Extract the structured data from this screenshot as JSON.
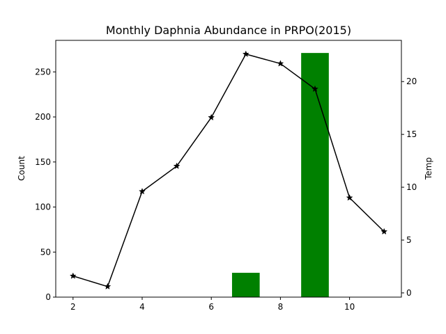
{
  "chart_data": {
    "type": "bar+line",
    "title": "Monthly Daphnia Abundance in PRPO(2015)",
    "xlabel": "",
    "ylabel": "Count",
    "y2label": "Temp",
    "xlim": [
      1.5,
      11.5
    ],
    "ylim": [
      0,
      285
    ],
    "y2lim": [
      -0.4,
      23.9
    ],
    "xticks": [
      2,
      4,
      6,
      8,
      10
    ],
    "yticks": [
      0,
      50,
      100,
      150,
      200,
      250
    ],
    "y2ticks": [
      0,
      5,
      10,
      15,
      20
    ],
    "bar_width": 0.8,
    "bar_color": "#008000",
    "line_color": "#000000",
    "marker": "star",
    "series": [
      {
        "type": "bar",
        "axis": "left",
        "x": [
          2,
          3,
          4,
          5,
          6,
          7,
          8,
          9,
          10,
          11
        ],
        "values": [
          0,
          0,
          0,
          0,
          0,
          27,
          0,
          271,
          0,
          0
        ]
      },
      {
        "type": "line",
        "axis": "right",
        "x": [
          2,
          3,
          4,
          5,
          6,
          7,
          8,
          9,
          10,
          11
        ],
        "values": [
          1.6,
          0.6,
          9.6,
          12.0,
          16.6,
          22.6,
          21.7,
          19.3,
          9.0,
          5.8
        ]
      }
    ]
  }
}
